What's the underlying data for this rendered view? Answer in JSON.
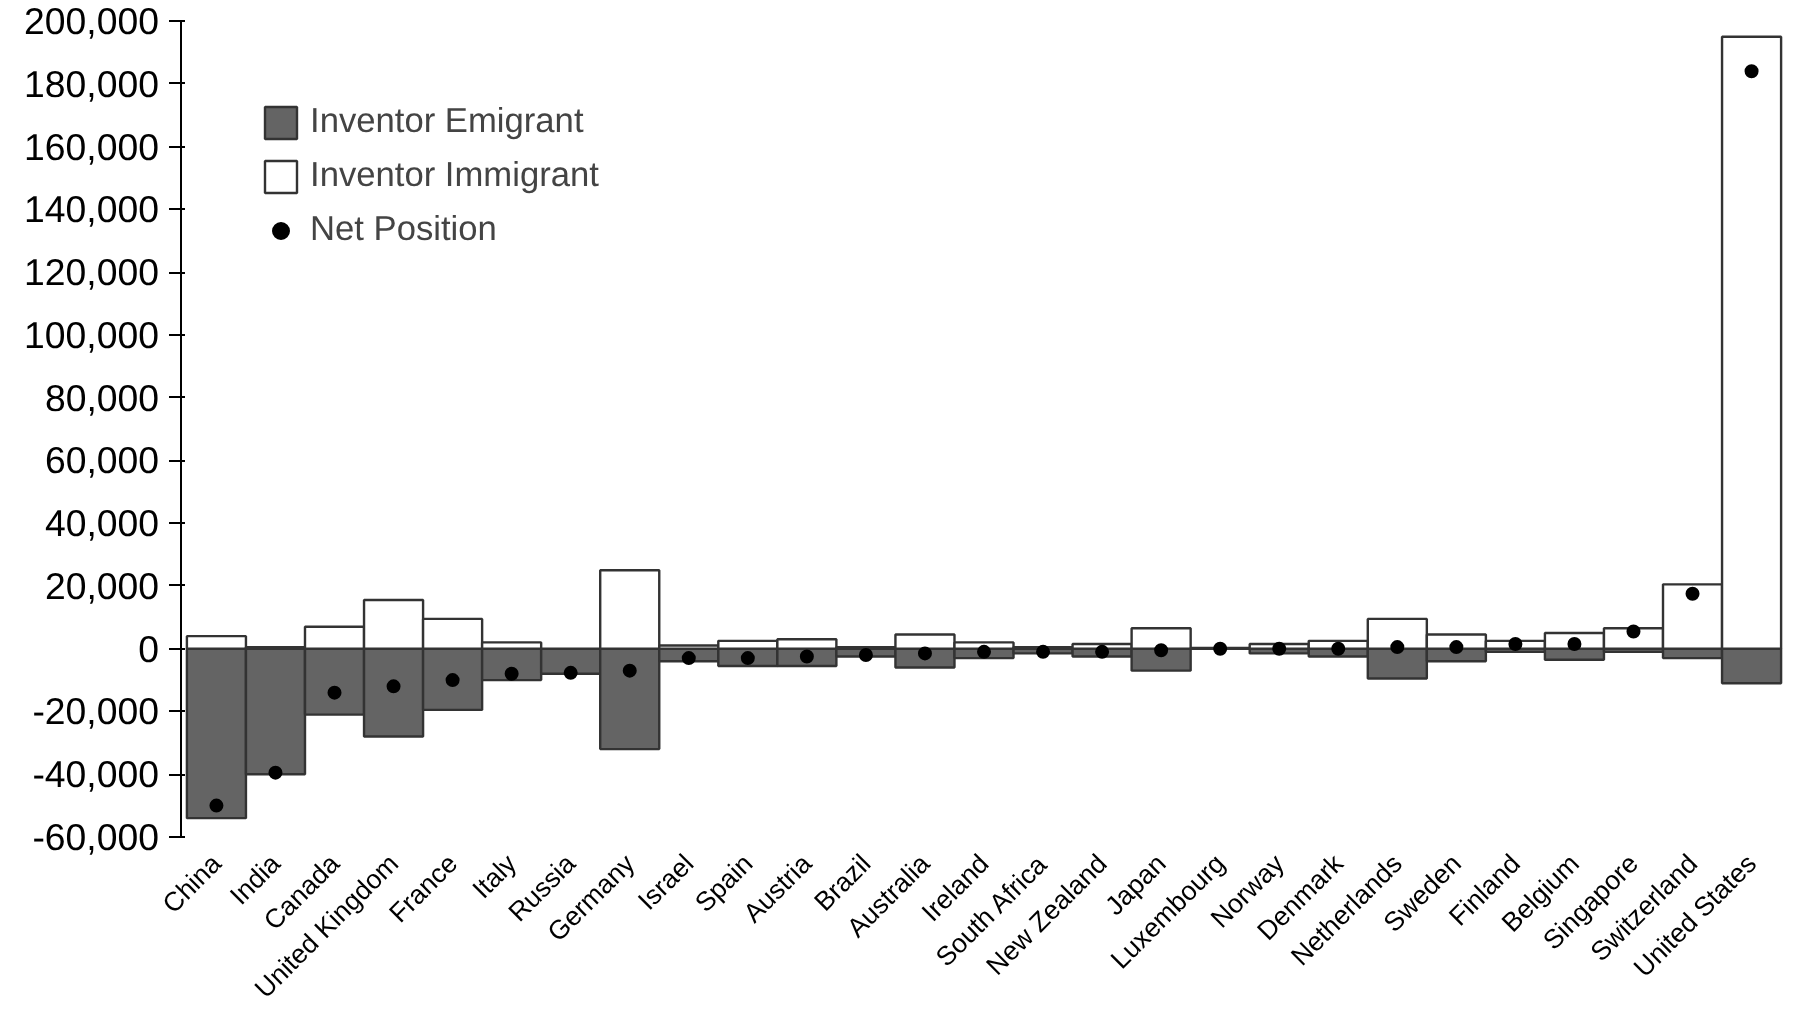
{
  "chart_data": {
    "type": "bar",
    "categories": [
      "China",
      "India",
      "Canada",
      "United Kingdom",
      "France",
      "Italy",
      "Russia",
      "Germany",
      "Israel",
      "Spain",
      "Austria",
      "Brazil",
      "Australia",
      "Ireland",
      "South Africa",
      "New Zealand",
      "Japan",
      "Luxembourg",
      "Norway",
      "Denmark",
      "Netherlands",
      "Sweden",
      "Finland",
      "Belgium",
      "Singapore",
      "Switzerland",
      "United States"
    ],
    "series": [
      {
        "name": "Inventor Emigrant",
        "color": "#646464",
        "values": [
          -54000,
          -40000,
          -21000,
          -28000,
          -19500,
          -10000,
          -8000,
          -32000,
          -4000,
          -5500,
          -5500,
          -2500,
          -6000,
          -3000,
          -1500,
          -2500,
          -7000,
          null,
          -1500,
          -2500,
          -9500,
          -4000,
          -1000,
          -3500,
          -1000,
          -3000,
          -11000
        ]
      },
      {
        "name": "Inventor Immigrant",
        "color": "#ffffff",
        "values": [
          4000,
          500,
          7000,
          15500,
          9500,
          2000,
          null,
          25000,
          1000,
          2500,
          3000,
          500,
          4500,
          2000,
          500,
          1500,
          6500,
          200,
          1500,
          2500,
          9500,
          4500,
          2500,
          5000,
          6500,
          20500,
          195000
        ]
      },
      {
        "name": "Net Position",
        "color": "#000000",
        "type": "scatter",
        "values": [
          -50000,
          -39500,
          -14000,
          -12000,
          -10000,
          -8000,
          -7700,
          -7000,
          -3000,
          -3000,
          -2500,
          -2000,
          -1500,
          -1000,
          -1000,
          -1000,
          -500,
          0,
          0,
          0,
          500,
          500,
          1500,
          1500,
          5500,
          17500,
          184000
        ]
      }
    ],
    "ylim": [
      -60000,
      200000
    ],
    "yticks": [
      {
        "value": -60000,
        "label": "-60,000"
      },
      {
        "value": -40000,
        "label": "-40,000"
      },
      {
        "value": -20000,
        "label": "-20,000"
      },
      {
        "value": 0,
        "label": "0"
      },
      {
        "value": 20000,
        "label": "20,000"
      },
      {
        "value": 40000,
        "label": "40,000"
      },
      {
        "value": 60000,
        "label": "60,000"
      },
      {
        "value": 80000,
        "label": "80,000"
      },
      {
        "value": 100000,
        "label": "100,000"
      },
      {
        "value": 120000,
        "label": "120,000"
      },
      {
        "value": 140000,
        "label": "140,000"
      },
      {
        "value": 160000,
        "label": "160,000"
      },
      {
        "value": 180000,
        "label": "180,000"
      },
      {
        "value": 200000,
        "label": "200,000"
      }
    ],
    "stacked": true,
    "grid": false,
    "legend": "top left",
    "marker": "circle"
  }
}
